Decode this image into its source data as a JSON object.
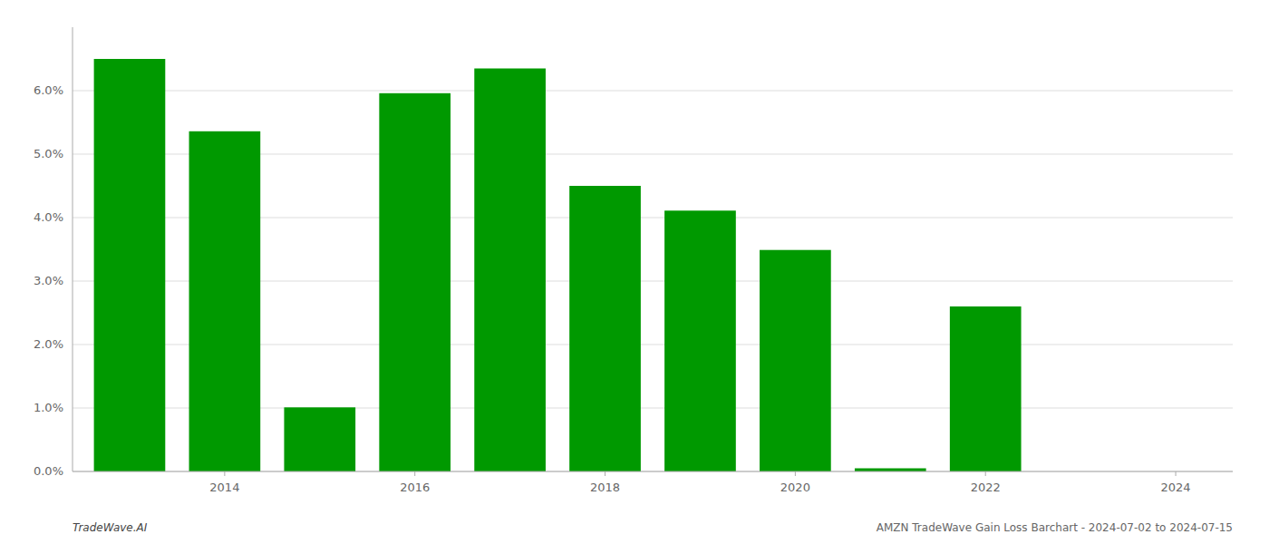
{
  "chart_data": {
    "type": "bar",
    "x": [
      2013,
      2014,
      2015,
      2016,
      2017,
      2018,
      2019,
      2020,
      2021,
      2022,
      2023
    ],
    "values": [
      6.5,
      5.36,
      1.01,
      5.96,
      6.35,
      4.5,
      4.11,
      3.49,
      0.05,
      2.6,
      0.0
    ],
    "color": "#009900",
    "xlim": [
      2012.4,
      2024.6
    ],
    "xticks": [
      2014,
      2016,
      2018,
      2020,
      2022,
      2024
    ],
    "ylim": [
      0,
      7.0
    ],
    "yticks": [
      {
        "value": 0.0,
        "label": "0.0%"
      },
      {
        "value": 1.0,
        "label": "1.0%"
      },
      {
        "value": 2.0,
        "label": "2.0%"
      },
      {
        "value": 3.0,
        "label": "3.0%"
      },
      {
        "value": 4.0,
        "label": "4.0%"
      },
      {
        "value": 5.0,
        "label": "5.0%"
      },
      {
        "value": 6.0,
        "label": "6.0%"
      }
    ],
    "grid": true,
    "annotations": [
      "TradeWave.AI",
      "AMZN TradeWave Gain Loss Barchart - 2024-07-02 to 2024-07-15"
    ]
  }
}
